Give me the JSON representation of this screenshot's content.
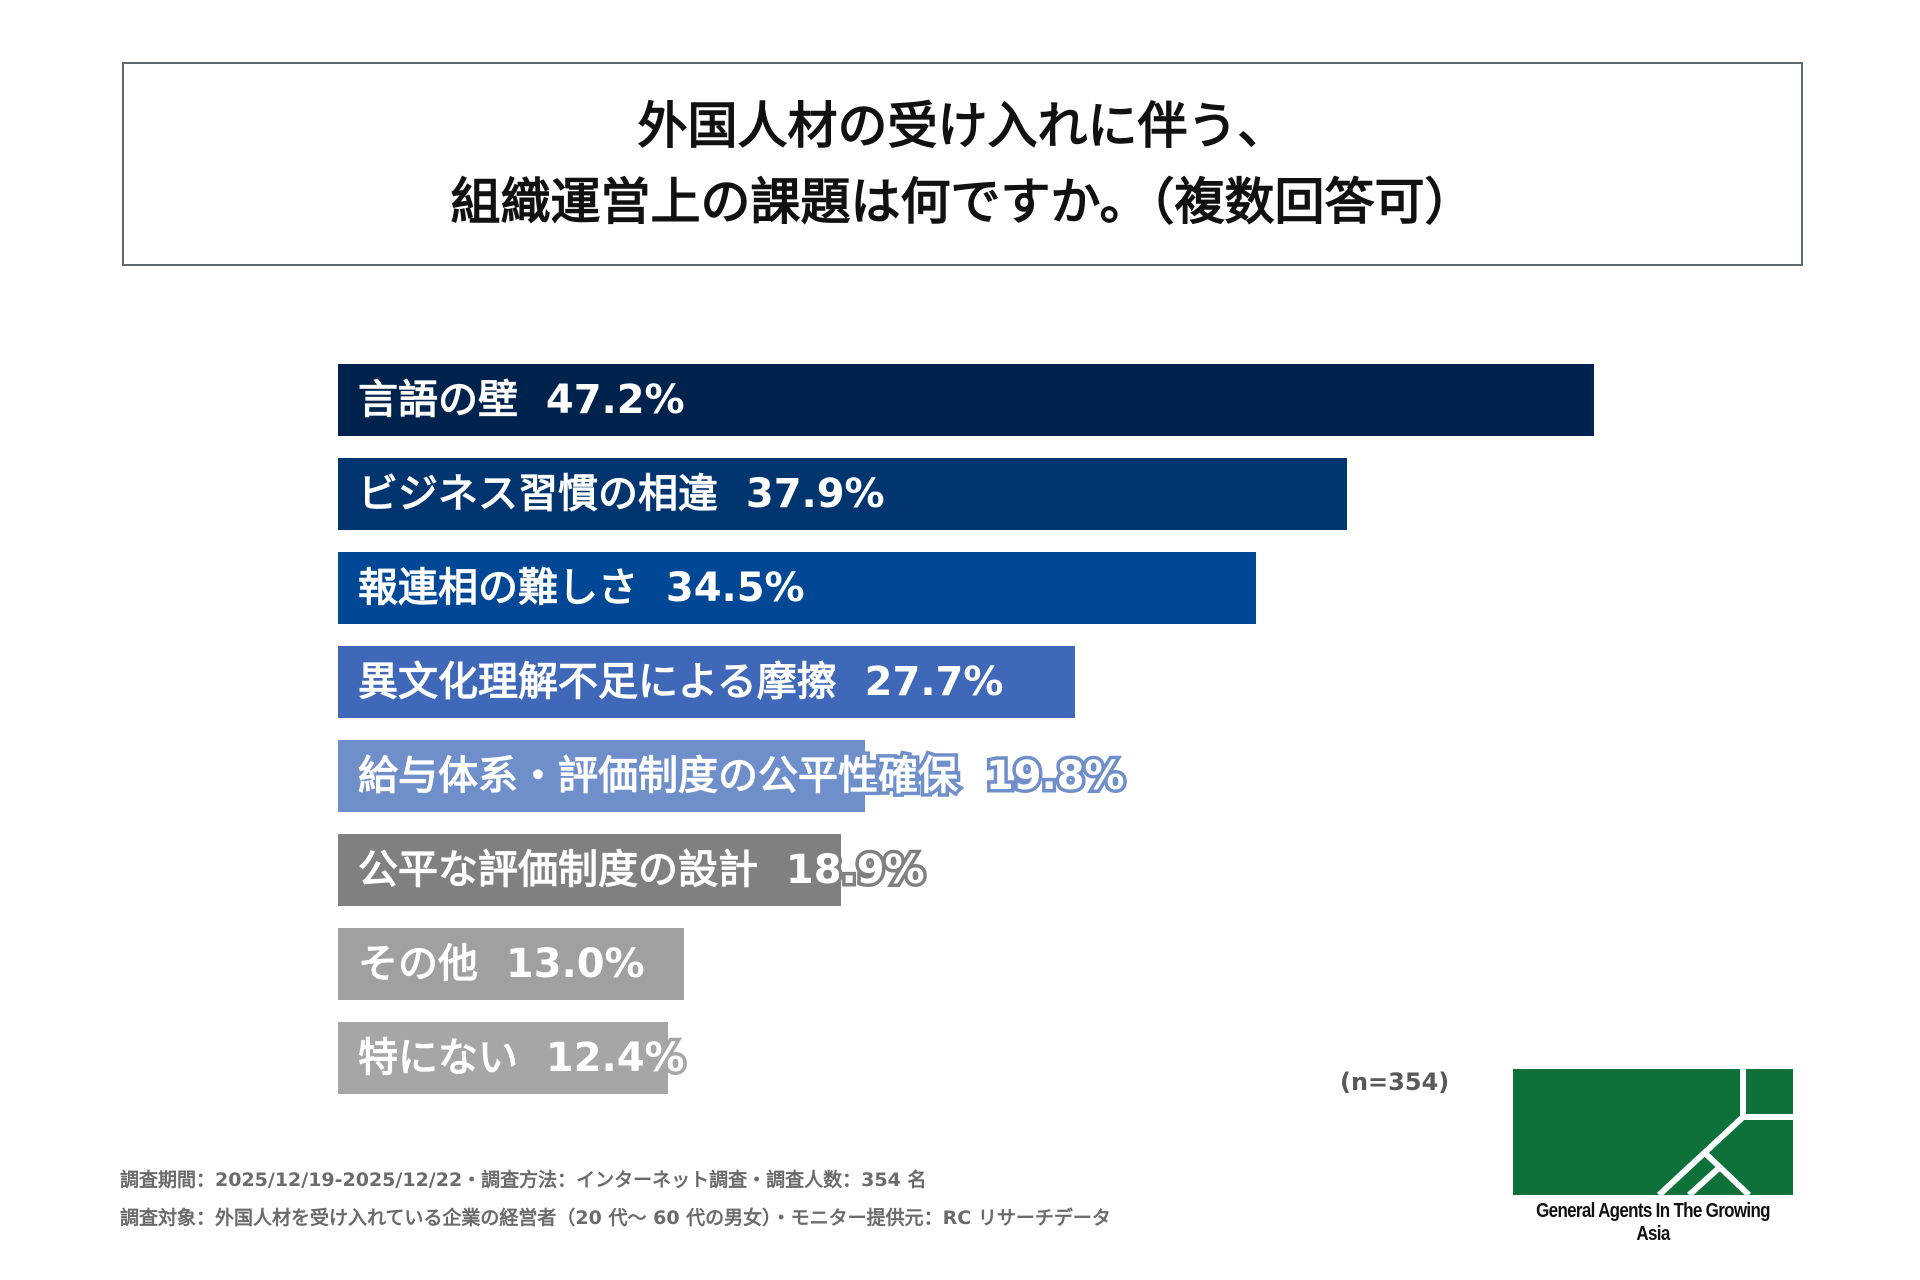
{
  "chart_data": {
    "type": "bar",
    "orientation": "horizontal",
    "title": [
      "外国人材の受け入れに伴う、",
      "組織運営上の課題は何ですか。（複数回答可）"
    ],
    "categories": [
      "言語の壁",
      "ビジネス習慣の相違",
      "報連相の難しさ",
      "異文化理解不足による摩擦",
      "給与体系・評価制度の公平性確保",
      "公平な評価制度の設計",
      "その他",
      "特にない"
    ],
    "values": [
      47.2,
      37.9,
      34.5,
      27.7,
      19.8,
      18.9,
      13.0,
      12.4
    ],
    "value_labels": [
      "47.2%",
      "37.9%",
      "34.5%",
      "27.7%",
      "19.8%",
      "18.9%",
      "13.0%",
      "12.4%"
    ],
    "colors": [
      "#00234d",
      "#00356f",
      "#004896",
      "#3f68b8",
      "#6f8fcb",
      "#808080",
      "#a0a0a0",
      "#a6a6a6"
    ],
    "xlim": [
      0,
      47.2
    ],
    "grid": false,
    "legend": "none",
    "xlabel": "",
    "ylabel": ""
  },
  "sample_size": "(n=354)",
  "footer": {
    "line1": "調査期間：2025/12/19-2025/12/22・調査方法：インターネット調査・調査人数：354 名",
    "line2": "調査対象：外国人材を受け入れている企業の経営者（20 代～ 60 代の男女）・モニター提供元：RC リサーチデータ"
  },
  "logo": {
    "text": "General Agents In The Growing Asia",
    "color": "#0e703a"
  }
}
